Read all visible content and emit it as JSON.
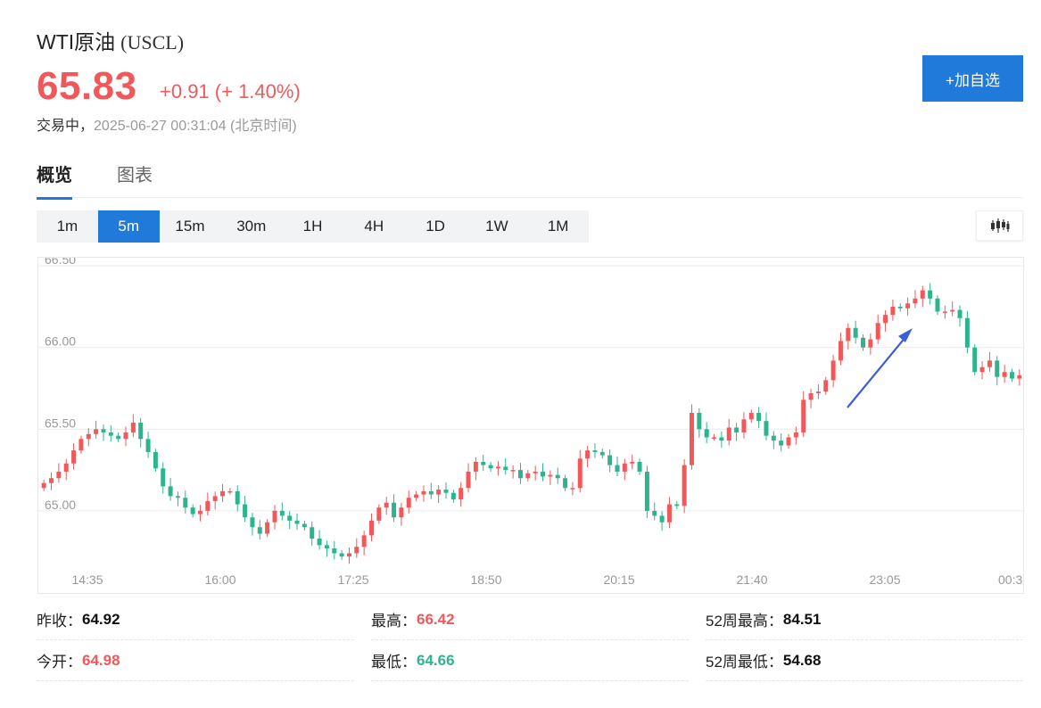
{
  "header": {
    "name": "WTI原油",
    "code": "(USCL)",
    "price": "65.83",
    "change": "+0.91 (+ 1.40%)",
    "status": "交易中，",
    "time": "2025-06-27 00:31:04",
    "timezone": "(北京时间)",
    "add_button": "+加自选"
  },
  "tabs": [
    {
      "label": "概览",
      "active": true
    },
    {
      "label": "图表",
      "active": false
    }
  ],
  "periods": [
    "1m",
    "5m",
    "15m",
    "30m",
    "1H",
    "4H",
    "1D",
    "1W",
    "1M"
  ],
  "active_period": "5m",
  "chart_type_icon": "candlestick-icon",
  "colors": {
    "up": "#f0585a",
    "down": "#2db48e",
    "accent": "#1f7ad9"
  },
  "chart_data": {
    "type": "candlestick",
    "y_ticks": [
      "66.50",
      "66.00",
      "65.50",
      "65.00"
    ],
    "x_ticks": [
      "14:35",
      "16:00",
      "17:25",
      "18:50",
      "20:15",
      "21:40",
      "23:05",
      "00:3"
    ],
    "ylim": [
      64.65,
      66.55
    ],
    "close_path": [
      65.17,
      65.2,
      65.24,
      65.29,
      65.37,
      65.44,
      65.47,
      65.5,
      65.48,
      65.46,
      65.44,
      65.48,
      65.54,
      65.44,
      65.36,
      65.26,
      65.15,
      65.09,
      65.08,
      65.02,
      64.98,
      65.0,
      65.06,
      65.09,
      65.12,
      65.12,
      65.04,
      64.96,
      64.9,
      64.86,
      64.93,
      65.0,
      64.97,
      64.94,
      64.92,
      64.9,
      64.83,
      64.79,
      64.77,
      64.74,
      64.72,
      64.74,
      64.78,
      64.85,
      64.94,
      65.02,
      65.05,
      64.96,
      65.02,
      65.08,
      65.1,
      65.12,
      65.1,
      65.13,
      65.11,
      65.07,
      65.14,
      65.24,
      65.3,
      65.28,
      65.26,
      65.27,
      65.25,
      65.25,
      65.2,
      65.23,
      65.24,
      65.21,
      65.22,
      65.2,
      65.14,
      65.14,
      65.32,
      65.37,
      65.36,
      65.34,
      65.28,
      65.24,
      65.29,
      65.3,
      65.24,
      65.0,
      64.97,
      64.93,
      65.04,
      65.03,
      65.28,
      65.6,
      65.5,
      65.45,
      65.45,
      65.43,
      65.51,
      65.48,
      65.56,
      65.6,
      65.55,
      65.46,
      65.43,
      65.4,
      65.45,
      65.48,
      65.68,
      65.72,
      65.73,
      65.8,
      65.92,
      66.04,
      66.12,
      66.06,
      66.0,
      66.05,
      66.15,
      66.2,
      66.25,
      66.24,
      66.27,
      66.3,
      66.35,
      66.3,
      66.22,
      66.22,
      66.23,
      66.18,
      66.0,
      65.85,
      65.88,
      65.92,
      65.82,
      65.85,
      65.81,
      65.83
    ]
  },
  "stats": [
    {
      "label": "昨收：",
      "value": "64.92",
      "tone": "neutral"
    },
    {
      "label": "最高：",
      "value": "66.42",
      "tone": "up"
    },
    {
      "label": "52周最高：",
      "value": "84.51",
      "tone": "neutral"
    },
    {
      "label": "今开：",
      "value": "64.98",
      "tone": "up"
    },
    {
      "label": "最低：",
      "value": "64.66",
      "tone": "down"
    },
    {
      "label": "52周最低：",
      "value": "54.68",
      "tone": "neutral"
    }
  ]
}
